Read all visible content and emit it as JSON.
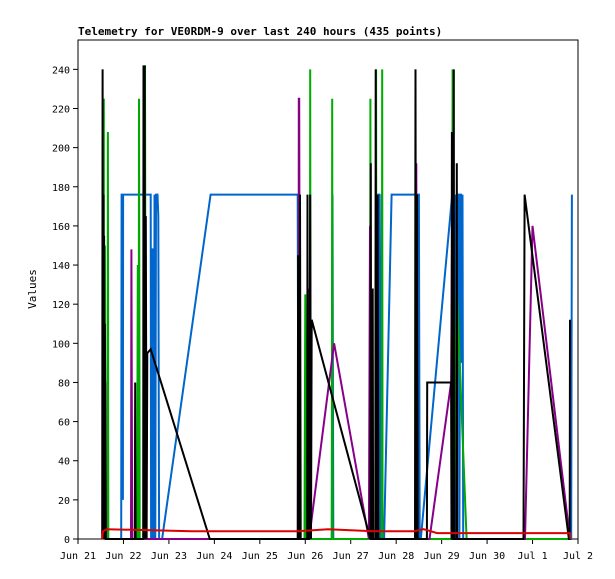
{
  "chart_data": {
    "type": "line",
    "title": "Telemetry for VE0RDM-9 over last 240 hours (435 points)",
    "xlabel": "",
    "ylabel": "Values",
    "xlim": [
      "Jun 21",
      "Jul 2"
    ],
    "ylim": [
      0,
      255
    ],
    "x_ticks": [
      "Jun 21",
      "Jun 22",
      "Jun 23",
      "Jun 24",
      "Jun 25",
      "Jun 26",
      "Jun 27",
      "Jun 28",
      "Jun 29",
      "Jun 30",
      "Jul 1",
      "Jul 2"
    ],
    "y_ticks": [
      0,
      20,
      40,
      60,
      80,
      100,
      120,
      140,
      160,
      180,
      200,
      220,
      240
    ],
    "grid": false,
    "legend": "none",
    "series": [
      {
        "color": "#0066cc",
        "points": [
          [
            "Jun 21 22:48",
            0
          ],
          [
            "Jun 21 23:00",
            176
          ],
          [
            "Jun 21 23:36",
            176
          ],
          [
            "Jun 21 23:42",
            20
          ],
          [
            "Jun 21 23:48",
            176
          ],
          [
            "Jun 22 14:24",
            176
          ],
          [
            "Jun 22 14:36",
            0
          ],
          [
            "Jun 22 15:00",
            0
          ],
          [
            "Jun 22 15:12",
            148
          ],
          [
            "Jun 22 15:36",
            148
          ],
          [
            "Jun 22 15:48",
            0
          ],
          [
            "Jun 22 16:12",
            0
          ],
          [
            "Jun 22 16:24",
            176
          ],
          [
            "Jun 22 16:48",
            0
          ],
          [
            "Jun 22 17:12",
            176
          ],
          [
            "Jun 22 18:00",
            176
          ],
          [
            "Jun 22 18:24",
            165
          ],
          [
            "Jun 22 18:48",
            0
          ],
          [
            "Jun 22 20:24",
            0
          ],
          [
            "Jun 23 22:00",
            176
          ],
          [
            "Jun 25 20:00",
            176
          ],
          [
            "Jun 25 20:24",
            0
          ],
          [
            "Jun 26 14:00",
            0
          ],
          [
            "Jun 26 14:24",
            176
          ],
          [
            "Jun 26 14:48",
            0
          ],
          [
            "Jun 27 13:00",
            0
          ],
          [
            "Jun 27 14:24",
            0
          ],
          [
            "Jun 27 14:36",
            176
          ],
          [
            "Jun 27 15:12",
            176
          ],
          [
            "Jun 27 15:36",
            0
          ],
          [
            "Jun 27 16:00",
            0
          ],
          [
            "Jun 27 16:24",
            176
          ],
          [
            "Jun 27 16:48",
            0
          ],
          [
            "Jun 27 17:36",
            0
          ],
          [
            "Jun 27 21:36",
            176
          ],
          [
            "Jun 28 12:00",
            176
          ],
          [
            "Jun 28 12:24",
            0
          ],
          [
            "Jun 28 13:00",
            0
          ],
          [
            "Jun 29 05:36",
            176
          ],
          [
            "Jun 29 06:00",
            0
          ],
          [
            "Jun 29 06:24",
            176
          ],
          [
            "Jun 29 07:00",
            0
          ],
          [
            "Jun 29 07:24",
            176
          ],
          [
            "Jun 29 07:48",
            0
          ],
          [
            "Jun 29 08:24",
            176
          ],
          [
            "Jun 29 09:00",
            176
          ],
          [
            "Jun 29 09:24",
            0
          ],
          [
            "Jun 29 09:48",
            176
          ],
          [
            "Jun 29 10:12",
            176
          ],
          [
            "Jun 29 10:36",
            90
          ],
          [
            "Jun 29 11:00",
            176
          ],
          [
            "Jun 29 11:24",
            0
          ],
          [
            "Jun 30 12:00",
            0
          ],
          [
            "Jul 1 20:24",
            0
          ],
          [
            "Jul 1 20:48",
            176
          ]
        ]
      },
      {
        "color": "#00aa00",
        "points": [
          [
            "Jun 21 13:24",
            0
          ],
          [
            "Jun 21 13:36",
            225
          ],
          [
            "Jun 21 13:48",
            0
          ],
          [
            "Jun 21 14:12",
            150
          ],
          [
            "Jun 21 14:36",
            0
          ],
          [
            "Jun 21 15:36",
            0
          ],
          [
            "Jun 21 15:48",
            208
          ],
          [
            "Jun 21 16:00",
            0
          ],
          [
            "Jun 22 07:12",
            0
          ],
          [
            "Jun 22 07:36",
            140
          ],
          [
            "Jun 22 08:00",
            0
          ],
          [
            "Jun 22 08:12",
            225
          ],
          [
            "Jun 22 08:36",
            0
          ],
          [
            "Jun 22 11:12",
            0
          ],
          [
            "Jun 22 11:24",
            242
          ],
          [
            "Jun 22 11:48",
            0
          ],
          [
            "Jun 25 23:36",
            0
          ],
          [
            "Jun 26 00:00",
            125
          ],
          [
            "Jun 26 00:36",
            0
          ],
          [
            "Jun 26 02:24",
            0
          ],
          [
            "Jun 26 02:36",
            240
          ],
          [
            "Jun 26 02:48",
            0
          ],
          [
            "Jun 26 14:00",
            0
          ],
          [
            "Jun 26 14:12",
            225
          ],
          [
            "Jun 26 14:24",
            0
          ],
          [
            "Jun 27 10:12",
            0
          ],
          [
            "Jun 27 10:24",
            225
          ],
          [
            "Jun 27 10:36",
            0
          ],
          [
            "Jun 27 13:12",
            0
          ],
          [
            "Jun 27 13:24",
            240
          ],
          [
            "Jun 27 13:36",
            0
          ],
          [
            "Jun 27 16:24",
            0
          ],
          [
            "Jun 27 16:36",
            240
          ],
          [
            "Jun 27 16:48",
            0
          ],
          [
            "Jun 28 10:00",
            0
          ],
          [
            "Jun 28 10:12",
            240
          ],
          [
            "Jun 28 10:24",
            0
          ],
          [
            "Jun 28 12:00",
            0
          ],
          [
            "Jun 29 05:24",
            0
          ],
          [
            "Jun 29 05:48",
            240
          ],
          [
            "Jun 29 06:12",
            0
          ],
          [
            "Jun 29 08:00",
            128
          ],
          [
            "Jun 29 13:12",
            0
          ],
          [
            "Jul 1 19:36",
            0
          ]
        ]
      },
      {
        "color": "#880088",
        "points": [
          [
            "Jun 21 14:00",
            0
          ],
          [
            "Jun 21 14:24",
            80
          ],
          [
            "Jun 21 14:48",
            0
          ],
          [
            "Jun 22 04:00",
            0
          ],
          [
            "Jun 22 04:12",
            148
          ],
          [
            "Jun 22 04:36",
            0
          ],
          [
            "Jun 25 20:24",
            0
          ],
          [
            "Jun 25 20:36",
            225
          ],
          [
            "Jun 25 20:48",
            225
          ],
          [
            "Jun 25 21:12",
            0
          ],
          [
            "Jun 26 01:12",
            0
          ],
          [
            "Jun 26 01:36",
            128
          ],
          [
            "Jun 26 02:00",
            0
          ],
          [
            "Jun 26 15:12",
            100
          ],
          [
            "Jun 27 09:36",
            0
          ],
          [
            "Jun 27 10:12",
            160
          ],
          [
            "Jun 27 10:36",
            0
          ],
          [
            "Jun 28 10:00",
            0
          ],
          [
            "Jun 28 10:36",
            192
          ],
          [
            "Jun 28 11:00",
            0
          ],
          [
            "Jun 28 17:36",
            0
          ],
          [
            "Jun 29 05:00",
            80
          ],
          [
            "Jun 29 05:24",
            145
          ],
          [
            "Jun 29 06:00",
            0
          ],
          [
            "Jun 30 20:00",
            0
          ],
          [
            "Jul 1 00:00",
            160
          ],
          [
            "Jul 1 19:48",
            0
          ]
        ]
      },
      {
        "color": "#000000",
        "points": [
          [
            "Jun 21 12:48",
            0
          ],
          [
            "Jun 21 13:00",
            240
          ],
          [
            "Jun 21 13:12",
            0
          ],
          [
            "Jun 21 13:24",
            176
          ],
          [
            "Jun 21 13:36",
            0
          ],
          [
            "Jun 21 13:48",
            155
          ],
          [
            "Jun 21 14:00",
            0
          ],
          [
            "Jun 21 14:12",
            110
          ],
          [
            "Jun 21 14:36",
            0
          ],
          [
            "Jun 22 06:00",
            0
          ],
          [
            "Jun 22 06:12",
            80
          ],
          [
            "Jun 22 06:24",
            0
          ],
          [
            "Jun 22 10:24",
            0
          ],
          [
            "Jun 22 10:36",
            242
          ],
          [
            "Jun 22 10:48",
            0
          ],
          [
            "Jun 22 11:12",
            242
          ],
          [
            "Jun 22 11:24",
            0
          ],
          [
            "Jun 22 11:48",
            165
          ],
          [
            "Jun 22 12:12",
            0
          ],
          [
            "Jun 22 12:36",
            95
          ],
          [
            "Jun 22 14:24",
            97
          ],
          [
            "Jun 23 21:36",
            0
          ],
          [
            "Jun 25 20:00",
            0
          ],
          [
            "Jun 25 20:12",
            145
          ],
          [
            "Jun 25 20:24",
            0
          ],
          [
            "Jun 25 21:00",
            0
          ],
          [
            "Jun 25 21:12",
            176
          ],
          [
            "Jun 25 21:36",
            0
          ],
          [
            "Jun 26 01:00",
            0
          ],
          [
            "Jun 26 01:12",
            176
          ],
          [
            "Jun 26 01:24",
            0
          ],
          [
            "Jun 26 02:00",
            0
          ],
          [
            "Jun 26 02:36",
            176
          ],
          [
            "Jun 26 03:00",
            0
          ],
          [
            "Jun 26 03:24",
            112
          ],
          [
            "Jun 27 10:24",
            0
          ],
          [
            "Jun 27 10:36",
            192
          ],
          [
            "Jun 27 10:48",
            0
          ],
          [
            "Jun 27 11:24",
            0
          ],
          [
            "Jun 27 11:36",
            128
          ],
          [
            "Jun 27 11:48",
            0
          ],
          [
            "Jun 27 13:00",
            0
          ],
          [
            "Jun 27 13:12",
            240
          ],
          [
            "Jun 27 13:24",
            0
          ],
          [
            "Jun 27 14:00",
            0
          ],
          [
            "Jun 27 14:12",
            176
          ],
          [
            "Jun 27 14:36",
            0
          ],
          [
            "Jun 28 10:00",
            0
          ],
          [
            "Jun 28 10:12",
            240
          ],
          [
            "Jun 28 10:24",
            0
          ],
          [
            "Jun 28 10:48",
            0
          ],
          [
            "Jun 28 11:00",
            176
          ],
          [
            "Jun 28 11:24",
            0
          ],
          [
            "Jun 28 16:12",
            0
          ],
          [
            "Jun 28 16:24",
            80
          ],
          [
            "Jun 29 05:00",
            80
          ],
          [
            "Jun 29 05:12",
            0
          ],
          [
            "Jun 29 05:24",
            208
          ],
          [
            "Jun 29 05:36",
            0
          ],
          [
            "Jun 29 06:12",
            0
          ],
          [
            "Jun 29 06:24",
            240
          ],
          [
            "Jun 29 06:36",
            0
          ],
          [
            "Jun 29 07:48",
            0
          ],
          [
            "Jun 29 08:00",
            192
          ],
          [
            "Jun 29 08:12",
            0
          ],
          [
            "Jun 30 11:00",
            0
          ],
          [
            "Jun 30 19:12",
            0
          ],
          [
            "Jun 30 19:48",
            176
          ],
          [
            "Jul 1 19:12",
            0
          ],
          [
            "Jul 1 19:36",
            0
          ],
          [
            "Jul 1 19:48",
            112
          ]
        ]
      },
      {
        "color": "#dd0000",
        "points": [
          [
            "Jun 21 12:48",
            0
          ],
          [
            "Jun 21 13:12",
            4
          ],
          [
            "Jun 21 15:12",
            5
          ],
          [
            "Jun 23 12:00",
            4
          ],
          [
            "Jun 25 20:00",
            4
          ],
          [
            "Jun 26 12:00",
            5
          ],
          [
            "Jun 27 12:00",
            4
          ],
          [
            "Jun 28 09:36",
            4
          ],
          [
            "Jun 28 14:24",
            5
          ],
          [
            "Jun 28 21:36",
            3
          ],
          [
            "Jun 29 12:00",
            3
          ],
          [
            "Jul 1 19:48",
            3
          ],
          [
            "Jul 1 20:00",
            0
          ]
        ]
      }
    ]
  }
}
